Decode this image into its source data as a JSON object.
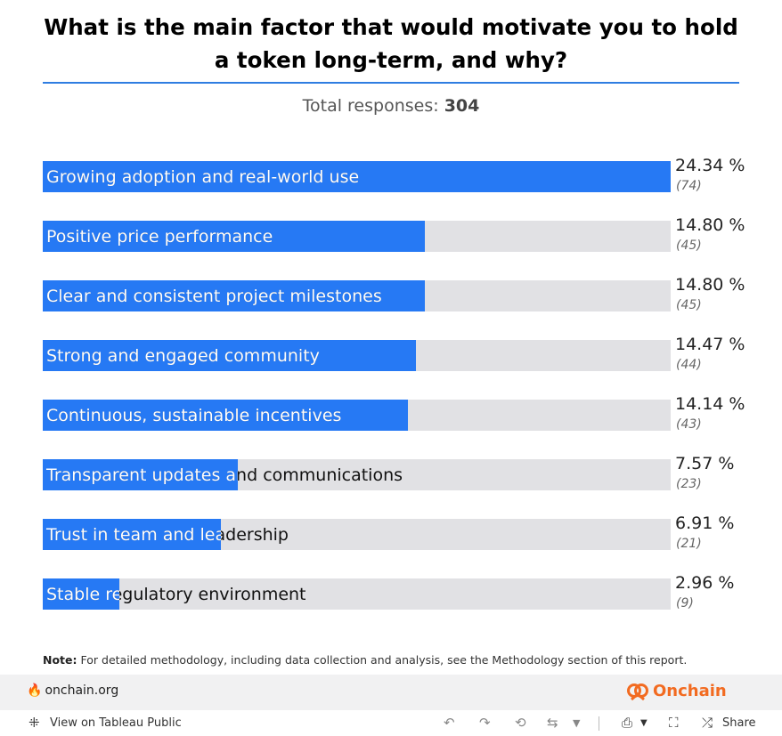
{
  "header": {
    "title": "What is the main factor that would motivate you to hold a token long-term, and why?",
    "total_label": "Total responses:",
    "total_value": "304"
  },
  "chart_data": {
    "type": "bar",
    "orientation": "horizontal",
    "title": "What is the main factor that would motivate you to hold a token long-term, and why?",
    "xlim": [
      0,
      24.34
    ],
    "categories": [
      "Growing adoption and real-world use",
      "Positive price performance",
      "Clear and consistent project milestones",
      "Strong and engaged community",
      "Continuous, sustainable incentives",
      "Transparent updates and communications",
      "Trust in team and leadership",
      "Stable regulatory environment"
    ],
    "values": [
      24.34,
      14.8,
      14.8,
      14.47,
      14.14,
      7.57,
      6.91,
      2.96
    ],
    "value_labels": [
      "24.34 %",
      "14.80 %",
      "14.80 %",
      "14.47 %",
      "14.14 %",
      "7.57 %",
      "6.91 %",
      "2.96 %"
    ],
    "counts": [
      "(74)",
      "(45)",
      "(45)",
      "(44)",
      "(43)",
      "(23)",
      "(21)",
      "(9)"
    ]
  },
  "note": {
    "label": "Note:",
    "text": "For detailed methodology, including data collection and analysis, see the Methodology section of this report."
  },
  "brand": {
    "site": "onchain.org",
    "logo_text": "Onchain",
    "accent": "#f26b21"
  },
  "toolbar": {
    "view_label": "View on Tableau Public",
    "share_label": "Share"
  },
  "colors": {
    "bar": "#2679f4",
    "track": "#e1e1e4",
    "rule": "#2f7de1"
  }
}
